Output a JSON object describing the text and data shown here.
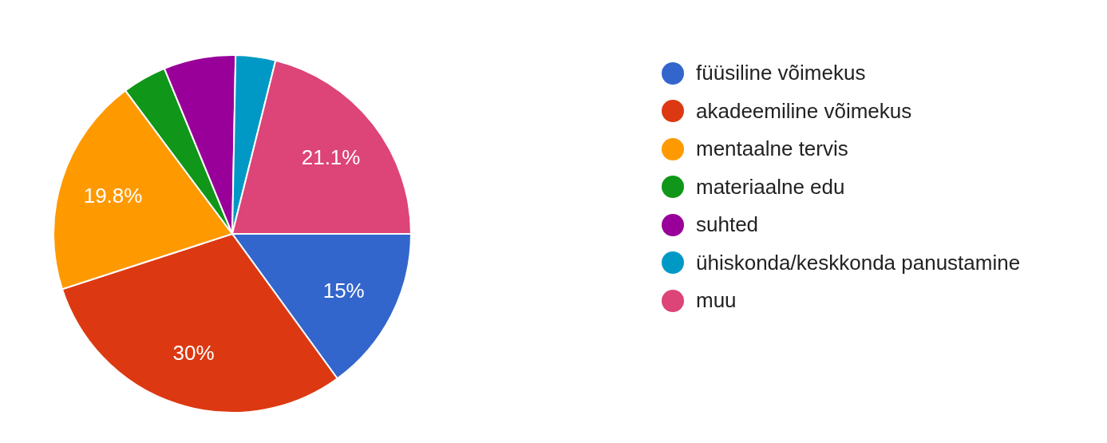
{
  "chart_data": {
    "type": "pie",
    "categories": [
      "füüsiline võimekus",
      "akadeemiline võimekus",
      "mentaalne tervis",
      "materiaalne edu",
      "suhted",
      "ühiskonda/keskkonda panustamine",
      "muu"
    ],
    "values": [
      15,
      30,
      19.8,
      4.0,
      6.5,
      3.6,
      21.1
    ],
    "colors": [
      "#3366cc",
      "#dc3912",
      "#ff9900",
      "#109618",
      "#990099",
      "#0099c6",
      "#dd4477"
    ],
    "value_labels": [
      "15%",
      "30%",
      "19.8%",
      null,
      null,
      null,
      "21.1%"
    ],
    "legend": "right"
  }
}
